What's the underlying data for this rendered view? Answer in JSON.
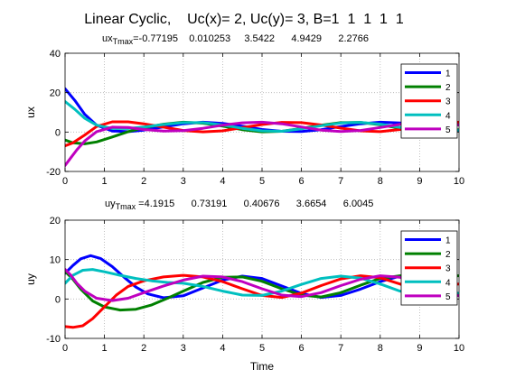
{
  "figure": {
    "title": "Linear Cyclic,    Uc(x)= 2, Uc(y)= 3, B=1  1  1  1  1",
    "xlabel": "Time"
  },
  "chart_data": [
    {
      "type": "line",
      "id": "ux",
      "subtitle_prefix": "ux",
      "subtitle_subscript": "Tmax",
      "subtitle_values": "=-0.77195    0.010253     3.5422      4.9429      2.2766",
      "ylabel": "ux",
      "xlim": [
        0,
        10
      ],
      "ylim": [
        -20,
        40
      ],
      "xticks": [
        0,
        1,
        2,
        3,
        4,
        5,
        6,
        7,
        8,
        9,
        10
      ],
      "yticks": [
        -20,
        0,
        20,
        40
      ],
      "grid": true,
      "legend_position": "top-right",
      "series": [
        {
          "name": "1",
          "color": "#0000ff",
          "x": [
            0,
            0.25,
            0.5,
            0.8,
            1.2,
            1.6,
            2.0,
            2.5,
            3.0,
            3.5,
            4.0,
            4.5,
            5.0,
            5.5,
            6.0,
            6.5,
            7.0,
            7.5,
            8.0,
            8.5,
            9.0,
            9.5,
            10
          ],
          "y": [
            22,
            16,
            9,
            3.5,
            0.5,
            0.2,
            1.0,
            2.6,
            4.2,
            5.0,
            4.4,
            3.0,
            1.3,
            0.4,
            0.3,
            1.2,
            2.8,
            4.2,
            5.0,
            4.6,
            3.3,
            1.7,
            0.8
          ]
        },
        {
          "name": "2",
          "color": "#008000",
          "x": [
            0,
            0.2,
            0.5,
            0.8,
            1.2,
            1.6,
            2.0,
            2.5,
            3.0,
            3.5,
            4.0,
            4.5,
            5.0,
            5.5,
            6.0,
            6.5,
            7.0,
            7.5,
            8.0,
            8.5,
            9.0,
            9.5,
            10
          ],
          "y": [
            -4.0,
            -5.5,
            -6.0,
            -5.0,
            -2.5,
            0.2,
            2.2,
            4.0,
            5.0,
            4.5,
            3.0,
            1.2,
            0.1,
            0.4,
            1.8,
            3.5,
            4.8,
            4.9,
            3.7,
            2.0,
            0.6,
            0.3,
            1.2
          ]
        },
        {
          "name": "3",
          "color": "#ff0000",
          "x": [
            0,
            0.2,
            0.5,
            0.8,
            1.2,
            1.6,
            2.0,
            2.5,
            3.0,
            3.5,
            4.0,
            4.5,
            5.0,
            5.5,
            6.0,
            6.5,
            7.0,
            7.5,
            8.0,
            8.5,
            9.0,
            9.5,
            10
          ],
          "y": [
            -7.0,
            -5.5,
            -1.5,
            2.8,
            5.2,
            5.2,
            4.2,
            2.5,
            0.8,
            0.1,
            0.6,
            2.2,
            3.8,
            4.9,
            4.8,
            3.6,
            2.0,
            0.6,
            0.2,
            1.3,
            3.0,
            4.5,
            5.0
          ]
        },
        {
          "name": "4",
          "color": "#00bfbf",
          "x": [
            0,
            0.25,
            0.5,
            0.8,
            1.2,
            1.6,
            2.0,
            2.5,
            3.0,
            3.5,
            4.0,
            4.5,
            5.0,
            5.5,
            6.0,
            6.5,
            7.0,
            7.5,
            8.0,
            8.5,
            9.0,
            9.5,
            10
          ],
          "y": [
            15.5,
            11.5,
            7.0,
            3.5,
            1.8,
            1.8,
            2.6,
            3.8,
            4.8,
            4.8,
            3.6,
            1.9,
            0.6,
            0.4,
            1.6,
            3.2,
            4.6,
            4.9,
            4.0,
            2.4,
            0.9,
            0.3,
            1.0
          ]
        },
        {
          "name": "5",
          "color": "#bf00bf",
          "x": [
            0,
            0.15,
            0.3,
            0.5,
            0.8,
            1.2,
            1.6,
            2.0,
            2.5,
            3.0,
            3.5,
            4.0,
            4.5,
            5.0,
            5.5,
            6.0,
            6.5,
            7.0,
            7.5,
            8.0,
            8.5,
            9.0,
            9.5,
            10
          ],
          "y": [
            -17,
            -13,
            -9,
            -4.5,
            0.2,
            2.5,
            2.3,
            1.3,
            0.5,
            0.7,
            1.9,
            3.5,
            4.7,
            5.0,
            4.2,
            2.6,
            1.0,
            0.3,
            0.8,
            2.3,
            3.9,
            4.9,
            4.8,
            3.6
          ]
        }
      ]
    },
    {
      "type": "line",
      "id": "uy",
      "subtitle_prefix": "uy",
      "subtitle_subscript": "Tmax",
      "subtitle_values": " =4.1915      0.73191      0.40676      3.6654      6.0045",
      "ylabel": "uy",
      "xlabel": "Time",
      "xlim": [
        0,
        10
      ],
      "ylim": [
        -10,
        20
      ],
      "xticks": [
        0,
        1,
        2,
        3,
        4,
        5,
        6,
        7,
        8,
        9,
        10
      ],
      "yticks": [
        -10,
        0,
        10,
        20
      ],
      "grid": true,
      "legend_position": "top-right",
      "series": [
        {
          "name": "1",
          "color": "#0000ff",
          "x": [
            0,
            0.2,
            0.4,
            0.65,
            0.9,
            1.2,
            1.5,
            1.8,
            2.1,
            2.5,
            3.0,
            3.5,
            4.0,
            4.5,
            5.0,
            5.5,
            6.0,
            6.5,
            7.0,
            7.5,
            8.0,
            8.5,
            9.0,
            9.5,
            10
          ],
          "y": [
            6.5,
            8.5,
            10.2,
            11.0,
            10.3,
            8.2,
            5.5,
            3.0,
            1.3,
            0.3,
            0.8,
            2.8,
            4.8,
            5.8,
            5.2,
            3.3,
            1.4,
            0.4,
            0.9,
            2.5,
            4.4,
            5.8,
            5.4,
            3.5,
            1.3
          ]
        },
        {
          "name": "2",
          "color": "#008000",
          "x": [
            0,
            0.2,
            0.4,
            0.7,
            1.0,
            1.4,
            1.8,
            2.2,
            2.6,
            3.0,
            3.5,
            4.0,
            4.5,
            5.0,
            5.5,
            6.0,
            6.5,
            7.0,
            7.5,
            8.0,
            8.5,
            9.0,
            9.5,
            10
          ],
          "y": [
            7.0,
            5.0,
            2.5,
            -0.5,
            -2.0,
            -2.8,
            -2.6,
            -1.5,
            0.2,
            2.0,
            4.2,
            5.5,
            5.6,
            4.5,
            2.6,
            1.0,
            0.5,
            1.6,
            3.5,
            5.2,
            5.9,
            5.9,
            5.9,
            5.9
          ]
        },
        {
          "name": "3",
          "color": "#ff0000",
          "x": [
            0,
            0.2,
            0.45,
            0.7,
            1.0,
            1.3,
            1.6,
            2.0,
            2.5,
            3.0,
            3.5,
            4.0,
            4.5,
            5.0,
            5.5,
            6.0,
            6.5,
            7.0,
            7.5,
            8.0,
            8.5,
            9.0,
            9.5,
            10
          ],
          "y": [
            -7.0,
            -7.2,
            -6.8,
            -5.0,
            -2.0,
            1.0,
            3.2,
            4.6,
            5.6,
            6.0,
            5.6,
            4.4,
            2.6,
            0.9,
            0.4,
            1.5,
            3.4,
            5.1,
            5.9,
            5.4,
            3.8,
            2.0,
            3.5,
            3.8
          ]
        },
        {
          "name": "4",
          "color": "#00bfbf",
          "x": [
            0,
            0.2,
            0.45,
            0.7,
            1.0,
            1.4,
            1.8,
            2.2,
            2.6,
            3.0,
            3.5,
            4.0,
            4.5,
            5.0,
            5.5,
            6.0,
            6.5,
            7.0,
            7.5,
            8.0,
            8.5,
            9.0,
            9.5,
            10
          ],
          "y": [
            4.0,
            6.0,
            7.3,
            7.5,
            6.9,
            6.0,
            5.2,
            4.6,
            4.2,
            4.0,
            3.2,
            2.0,
            1.0,
            0.9,
            2.0,
            3.7,
            5.2,
            5.8,
            5.3,
            3.8,
            2.0,
            0.8,
            0.6,
            1.5
          ]
        },
        {
          "name": "5",
          "color": "#bf00bf",
          "x": [
            0,
            0.15,
            0.3,
            0.5,
            0.8,
            1.2,
            1.6,
            2.0,
            2.5,
            3.0,
            3.5,
            4.0,
            4.5,
            5.0,
            5.5,
            6.0,
            6.5,
            7.0,
            7.5,
            8.0,
            8.5,
            9.0,
            9.5,
            10
          ],
          "y": [
            7.5,
            6.0,
            4.0,
            2.0,
            0.2,
            -0.4,
            0.2,
            1.6,
            3.3,
            4.8,
            5.8,
            5.6,
            4.4,
            2.6,
            1.0,
            0.6,
            1.6,
            3.4,
            5.0,
            5.9,
            5.5,
            3.8,
            1.9,
            0.8
          ]
        }
      ]
    }
  ]
}
